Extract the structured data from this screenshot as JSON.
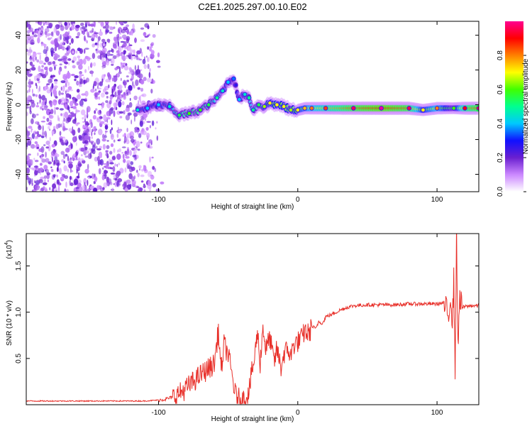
{
  "chart_data": [
    {
      "type": "heatmap",
      "title": "C2E1.2025.297.00.10.E02",
      "xlabel": "Height of straight line (km)",
      "ylabel": "Frequency (Hz)",
      "xlim": [
        -195,
        130
      ],
      "ylim": [
        -50,
        48
      ],
      "x_ticks": [
        -100,
        0,
        100
      ],
      "x_tick_labels": [
        "-100",
        "0",
        "100"
      ],
      "y_ticks": [
        -40,
        -20,
        0,
        20,
        40
      ],
      "y_tick_labels": [
        "-40",
        "-20",
        "0",
        "20",
        "40"
      ],
      "colorbar": {
        "label": "Normalized spectral amplitude",
        "range": [
          0,
          1
        ],
        "ticks": [
          0,
          0.2,
          0.4,
          0.6,
          0.8
        ],
        "tick_labels": [
          "0.0",
          "0.2",
          "0.4",
          "0.6",
          "0.8"
        ],
        "colors": [
          "#ffffff",
          "#cc88ff",
          "#6a1fd0",
          "#1010ff",
          "#00c8ff",
          "#00ff90",
          "#40ff00",
          "#ffff00",
          "#ff8000",
          "#ff0000",
          "#ff0090"
        ]
      },
      "noise_region_x": [
        -195,
        -97
      ],
      "signal_track": [
        {
          "x": -115,
          "y": -3,
          "a": 0.35
        },
        {
          "x": -108,
          "y": -2,
          "a": 0.3
        },
        {
          "x": -100,
          "y": 0,
          "a": 0.3
        },
        {
          "x": -92,
          "y": -1,
          "a": 0.35
        },
        {
          "x": -85,
          "y": -6,
          "a": 0.45
        },
        {
          "x": -78,
          "y": -5,
          "a": 0.5
        },
        {
          "x": -70,
          "y": -3,
          "a": 0.5
        },
        {
          "x": -64,
          "y": 0,
          "a": 0.45
        },
        {
          "x": -58,
          "y": 4,
          "a": 0.4
        },
        {
          "x": -54,
          "y": 8,
          "a": 0.35
        },
        {
          "x": -50,
          "y": 13,
          "a": 0.3
        },
        {
          "x": -46,
          "y": 15,
          "a": 0.25
        },
        {
          "x": -42,
          "y": 3,
          "a": 0.3
        },
        {
          "x": -38,
          "y": 6,
          "a": 0.35
        },
        {
          "x": -35,
          "y": 4,
          "a": 0.4
        },
        {
          "x": -32,
          "y": -3,
          "a": 0.4
        },
        {
          "x": -28,
          "y": 0,
          "a": 0.45
        },
        {
          "x": -24,
          "y": -1,
          "a": 0.55
        },
        {
          "x": -20,
          "y": 1,
          "a": 0.6
        },
        {
          "x": -15,
          "y": 0,
          "a": 0.6
        },
        {
          "x": -10,
          "y": -1,
          "a": 0.6
        },
        {
          "x": -5,
          "y": -3,
          "a": 0.55
        },
        {
          "x": 0,
          "y": -3,
          "a": 0.6
        },
        {
          "x": 5,
          "y": -2,
          "a": 0.65
        },
        {
          "x": 10,
          "y": -2,
          "a": 0.7
        },
        {
          "x": 20,
          "y": -2,
          "a": 0.75
        },
        {
          "x": 40,
          "y": -2,
          "a": 0.85
        },
        {
          "x": 60,
          "y": -2,
          "a": 0.9
        },
        {
          "x": 80,
          "y": -2,
          "a": 0.85
        },
        {
          "x": 90,
          "y": -3,
          "a": 0.6
        },
        {
          "x": 100,
          "y": -2,
          "a": 0.7
        },
        {
          "x": 112,
          "y": -2,
          "a": 0.5
        },
        {
          "x": 120,
          "y": -2,
          "a": 0.8
        },
        {
          "x": 130,
          "y": -2,
          "a": 0.85
        }
      ]
    },
    {
      "type": "line",
      "title": "",
      "xlabel": "Height of straight line (km)",
      "ylabel": "SNR (10 * v/v)",
      "scale_label": "(x10",
      "scale_exponent": "4",
      "xlim": [
        -195,
        130
      ],
      "ylim": [
        0,
        1.85
      ],
      "x_ticks": [
        -100,
        0,
        100
      ],
      "x_tick_labels": [
        "-100",
        "0",
        "100"
      ],
      "y_ticks": [
        0.5,
        1.0,
        1.5
      ],
      "y_tick_labels": [
        "0.5",
        "1.0",
        "1.5"
      ],
      "line_color": "#e8302a",
      "series": [
        {
          "name": "SNR",
          "x": [
            -195,
            -180,
            -160,
            -140,
            -120,
            -110,
            -100,
            -95,
            -90,
            -85,
            -80,
            -75,
            -70,
            -65,
            -60,
            -57,
            -55,
            -53,
            -50,
            -47,
            -45,
            -42,
            -40,
            -37,
            -35,
            -33,
            -31,
            -29,
            -27,
            -25,
            -23,
            -20,
            -17,
            -15,
            -12,
            -10,
            -7,
            -5,
            -3,
            0,
            3,
            5,
            8,
            10,
            13,
            15,
            18,
            20,
            25,
            30,
            35,
            40,
            50,
            60,
            70,
            80,
            90,
            100,
            105,
            108,
            110,
            111,
            112,
            113,
            114,
            115,
            116,
            118,
            120,
            125,
            130
          ],
          "y": [
            0.04,
            0.04,
            0.04,
            0.04,
            0.04,
            0.04,
            0.05,
            0.06,
            0.08,
            0.12,
            0.18,
            0.25,
            0.32,
            0.38,
            0.44,
            0.8,
            0.35,
            0.65,
            0.55,
            0.3,
            0.12,
            0.06,
            0.05,
            0.08,
            0.15,
            0.35,
            0.5,
            0.8,
            0.45,
            0.85,
            0.6,
            0.72,
            0.45,
            0.6,
            0.4,
            0.55,
            0.6,
            0.52,
            0.65,
            0.68,
            0.72,
            0.8,
            0.76,
            0.85,
            0.82,
            0.9,
            0.88,
            0.95,
            0.98,
            1.02,
            1.05,
            1.07,
            1.08,
            1.08,
            1.08,
            1.09,
            1.09,
            1.09,
            1.1,
            0.95,
            1.2,
            0.85,
            1.35,
            0.4,
            1.85,
            0.6,
            1.15,
            1.05,
            1.06,
            1.07,
            1.07
          ]
        }
      ]
    }
  ]
}
